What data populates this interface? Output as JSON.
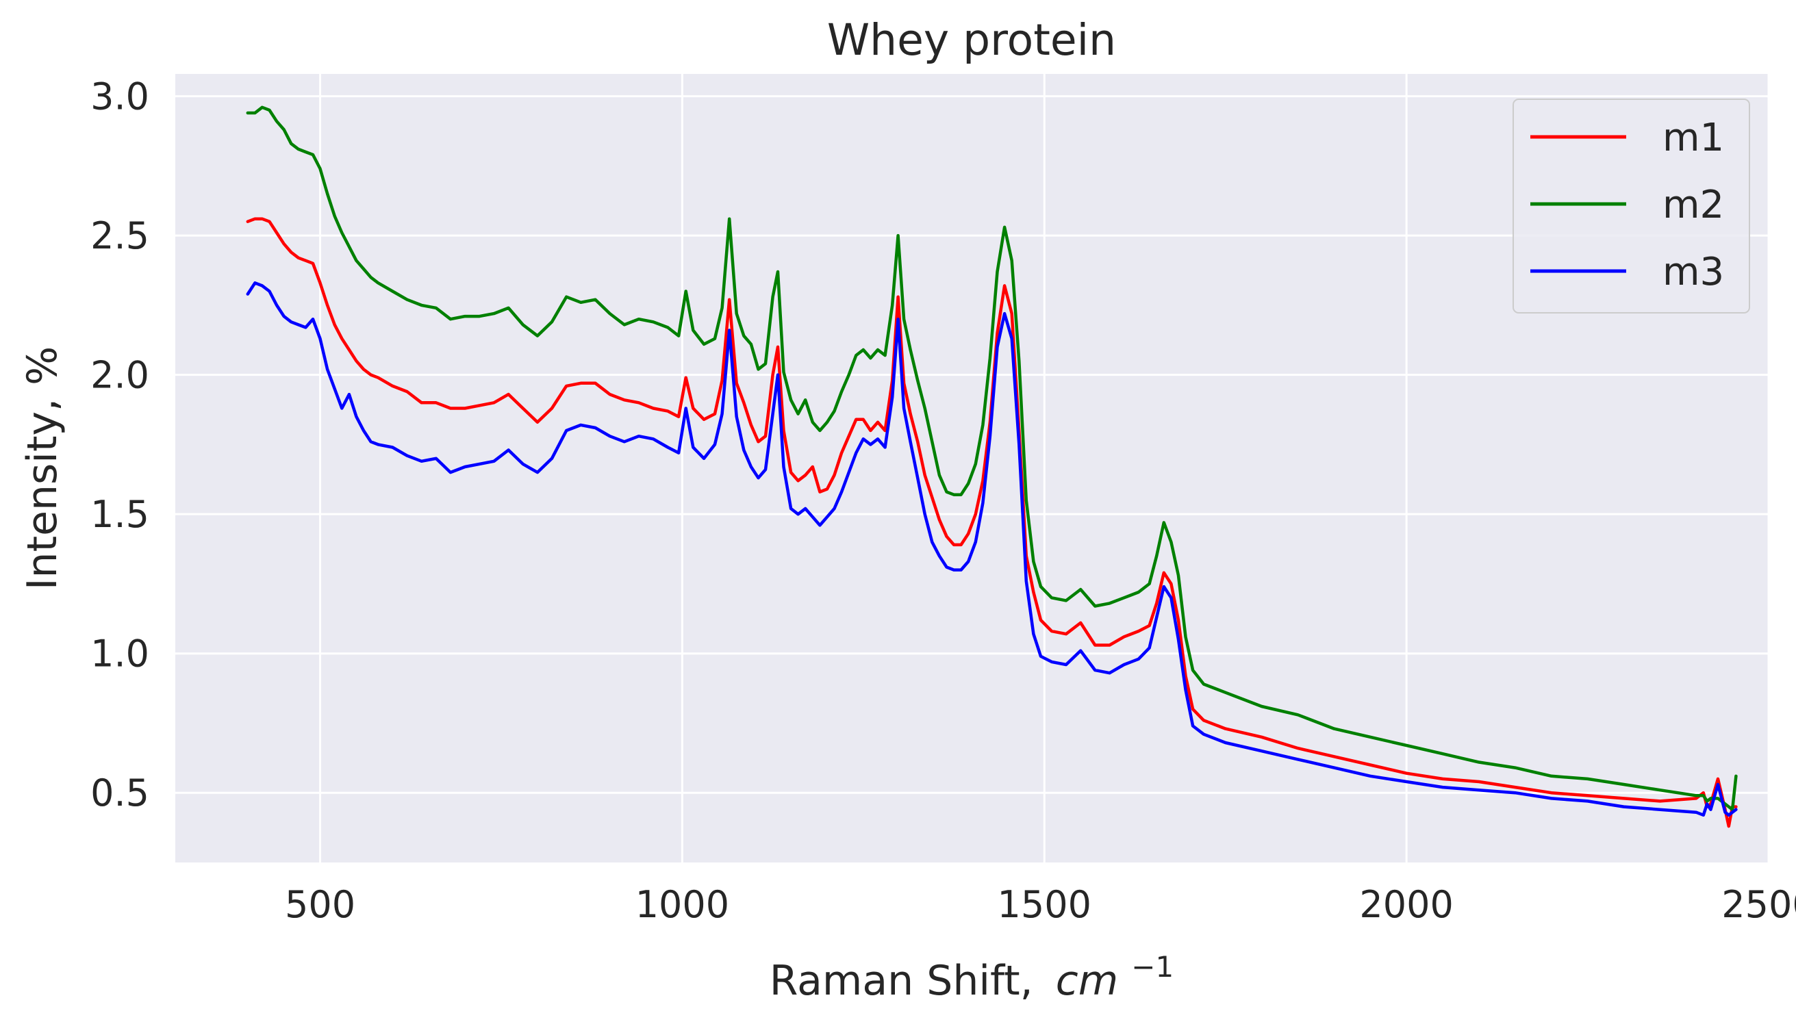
{
  "chart_data": {
    "type": "line",
    "title": "Whey protein",
    "xlabel": "Raman Shift,",
    "xlabel_math": "cm",
    "xlabel_exp": "−1",
    "ylabel": "Intensity, %",
    "xlim": [
      300,
      2500
    ],
    "ylim": [
      0.25,
      3.08
    ],
    "xticks": [
      500,
      1000,
      1500,
      2000,
      2500
    ],
    "xtick_labels": [
      "500",
      "1000",
      "1500",
      "2000",
      "2500"
    ],
    "yticks": [
      0.5,
      1.0,
      1.5,
      2.0,
      2.5,
      3.0
    ],
    "ytick_labels": [
      "0.5",
      "1.0",
      "1.5",
      "2.0",
      "2.5",
      "3.0"
    ],
    "grid": true,
    "legend_position": "top-right",
    "colors": {
      "background": "#eaeaf2",
      "grid": "#ffffff",
      "text": "#262626"
    },
    "x": [
      400,
      410,
      420,
      430,
      440,
      450,
      460,
      470,
      480,
      490,
      500,
      510,
      520,
      530,
      540,
      550,
      560,
      570,
      580,
      600,
      620,
      640,
      660,
      680,
      700,
      720,
      740,
      760,
      780,
      800,
      820,
      840,
      860,
      880,
      900,
      920,
      940,
      960,
      980,
      995,
      1005,
      1015,
      1030,
      1045,
      1055,
      1065,
      1075,
      1085,
      1095,
      1105,
      1115,
      1125,
      1132,
      1140,
      1150,
      1160,
      1170,
      1180,
      1190,
      1200,
      1210,
      1220,
      1230,
      1240,
      1250,
      1260,
      1270,
      1280,
      1290,
      1298,
      1306,
      1315,
      1325,
      1335,
      1345,
      1355,
      1365,
      1375,
      1385,
      1395,
      1405,
      1415,
      1425,
      1435,
      1445,
      1455,
      1465,
      1475,
      1485,
      1495,
      1510,
      1530,
      1550,
      1570,
      1590,
      1610,
      1630,
      1645,
      1655,
      1665,
      1675,
      1685,
      1695,
      1705,
      1720,
      1750,
      1800,
      1850,
      1900,
      1950,
      2000,
      2050,
      2100,
      2150,
      2200,
      2250,
      2300,
      2350,
      2400,
      2410,
      2415,
      2420,
      2430,
      2440,
      2445,
      2450,
      2455
    ],
    "series": [
      {
        "name": "m1",
        "color": "#ff0000",
        "values": [
          2.55,
          2.56,
          2.56,
          2.55,
          2.51,
          2.47,
          2.44,
          2.42,
          2.41,
          2.4,
          2.33,
          2.25,
          2.18,
          2.13,
          2.09,
          2.05,
          2.02,
          2.0,
          1.99,
          1.96,
          1.94,
          1.9,
          1.9,
          1.88,
          1.88,
          1.89,
          1.9,
          1.93,
          1.88,
          1.83,
          1.88,
          1.96,
          1.97,
          1.97,
          1.93,
          1.91,
          1.9,
          1.88,
          1.87,
          1.85,
          1.99,
          1.88,
          1.84,
          1.86,
          1.98,
          2.27,
          1.97,
          1.9,
          1.82,
          1.76,
          1.78,
          2.0,
          2.1,
          1.8,
          1.65,
          1.62,
          1.64,
          1.67,
          1.58,
          1.59,
          1.64,
          1.72,
          1.78,
          1.84,
          1.84,
          1.8,
          1.83,
          1.8,
          1.98,
          2.28,
          1.97,
          1.86,
          1.76,
          1.64,
          1.56,
          1.48,
          1.42,
          1.39,
          1.39,
          1.43,
          1.5,
          1.62,
          1.83,
          2.15,
          2.32,
          2.22,
          1.8,
          1.35,
          1.22,
          1.12,
          1.08,
          1.07,
          1.11,
          1.03,
          1.03,
          1.06,
          1.08,
          1.1,
          1.18,
          1.29,
          1.25,
          1.12,
          0.92,
          0.8,
          0.76,
          0.73,
          0.7,
          0.66,
          0.63,
          0.6,
          0.57,
          0.55,
          0.54,
          0.52,
          0.5,
          0.49,
          0.48,
          0.47,
          0.48,
          0.5,
          0.45,
          0.46,
          0.55,
          0.44,
          0.38,
          0.45,
          0.45
        ]
      },
      {
        "name": "m2",
        "color": "#008000",
        "values": [
          2.94,
          2.94,
          2.96,
          2.95,
          2.91,
          2.88,
          2.83,
          2.81,
          2.8,
          2.79,
          2.74,
          2.65,
          2.57,
          2.51,
          2.46,
          2.41,
          2.38,
          2.35,
          2.33,
          2.3,
          2.27,
          2.25,
          2.24,
          2.2,
          2.21,
          2.21,
          2.22,
          2.24,
          2.18,
          2.14,
          2.19,
          2.28,
          2.26,
          2.27,
          2.22,
          2.18,
          2.2,
          2.19,
          2.17,
          2.14,
          2.3,
          2.16,
          2.11,
          2.13,
          2.24,
          2.56,
          2.22,
          2.14,
          2.11,
          2.02,
          2.04,
          2.28,
          2.37,
          2.01,
          1.91,
          1.86,
          1.91,
          1.83,
          1.8,
          1.83,
          1.87,
          1.94,
          2.0,
          2.07,
          2.09,
          2.06,
          2.09,
          2.07,
          2.25,
          2.5,
          2.2,
          2.09,
          1.98,
          1.88,
          1.76,
          1.64,
          1.58,
          1.57,
          1.57,
          1.61,
          1.68,
          1.82,
          2.06,
          2.37,
          2.53,
          2.41,
          2.05,
          1.55,
          1.33,
          1.24,
          1.2,
          1.19,
          1.23,
          1.17,
          1.18,
          1.2,
          1.22,
          1.25,
          1.35,
          1.47,
          1.4,
          1.28,
          1.06,
          0.94,
          0.89,
          0.86,
          0.81,
          0.78,
          0.73,
          0.7,
          0.67,
          0.64,
          0.61,
          0.59,
          0.56,
          0.55,
          0.53,
          0.51,
          0.49,
          0.49,
          0.47,
          0.48,
          0.48,
          0.46,
          0.45,
          0.44,
          0.56
        ]
      },
      {
        "name": "m3",
        "color": "#0000ff",
        "values": [
          2.29,
          2.33,
          2.32,
          2.3,
          2.25,
          2.21,
          2.19,
          2.18,
          2.17,
          2.2,
          2.13,
          2.02,
          1.95,
          1.88,
          1.93,
          1.85,
          1.8,
          1.76,
          1.75,
          1.74,
          1.71,
          1.69,
          1.7,
          1.65,
          1.67,
          1.68,
          1.69,
          1.73,
          1.68,
          1.65,
          1.7,
          1.8,
          1.82,
          1.81,
          1.78,
          1.76,
          1.78,
          1.77,
          1.74,
          1.72,
          1.88,
          1.74,
          1.7,
          1.75,
          1.86,
          2.16,
          1.85,
          1.73,
          1.67,
          1.63,
          1.66,
          1.86,
          2.0,
          1.67,
          1.52,
          1.5,
          1.52,
          1.49,
          1.46,
          1.49,
          1.52,
          1.58,
          1.65,
          1.72,
          1.77,
          1.75,
          1.77,
          1.74,
          1.92,
          2.2,
          1.88,
          1.76,
          1.63,
          1.5,
          1.4,
          1.35,
          1.31,
          1.3,
          1.3,
          1.33,
          1.4,
          1.54,
          1.78,
          2.1,
          2.22,
          2.13,
          1.75,
          1.26,
          1.07,
          0.99,
          0.97,
          0.96,
          1.01,
          0.94,
          0.93,
          0.96,
          0.98,
          1.02,
          1.13,
          1.24,
          1.2,
          1.05,
          0.87,
          0.74,
          0.71,
          0.68,
          0.65,
          0.62,
          0.59,
          0.56,
          0.54,
          0.52,
          0.51,
          0.5,
          0.48,
          0.47,
          0.45,
          0.44,
          0.43,
          0.42,
          0.46,
          0.44,
          0.53,
          0.43,
          0.42,
          0.43,
          0.44
        ]
      }
    ]
  }
}
